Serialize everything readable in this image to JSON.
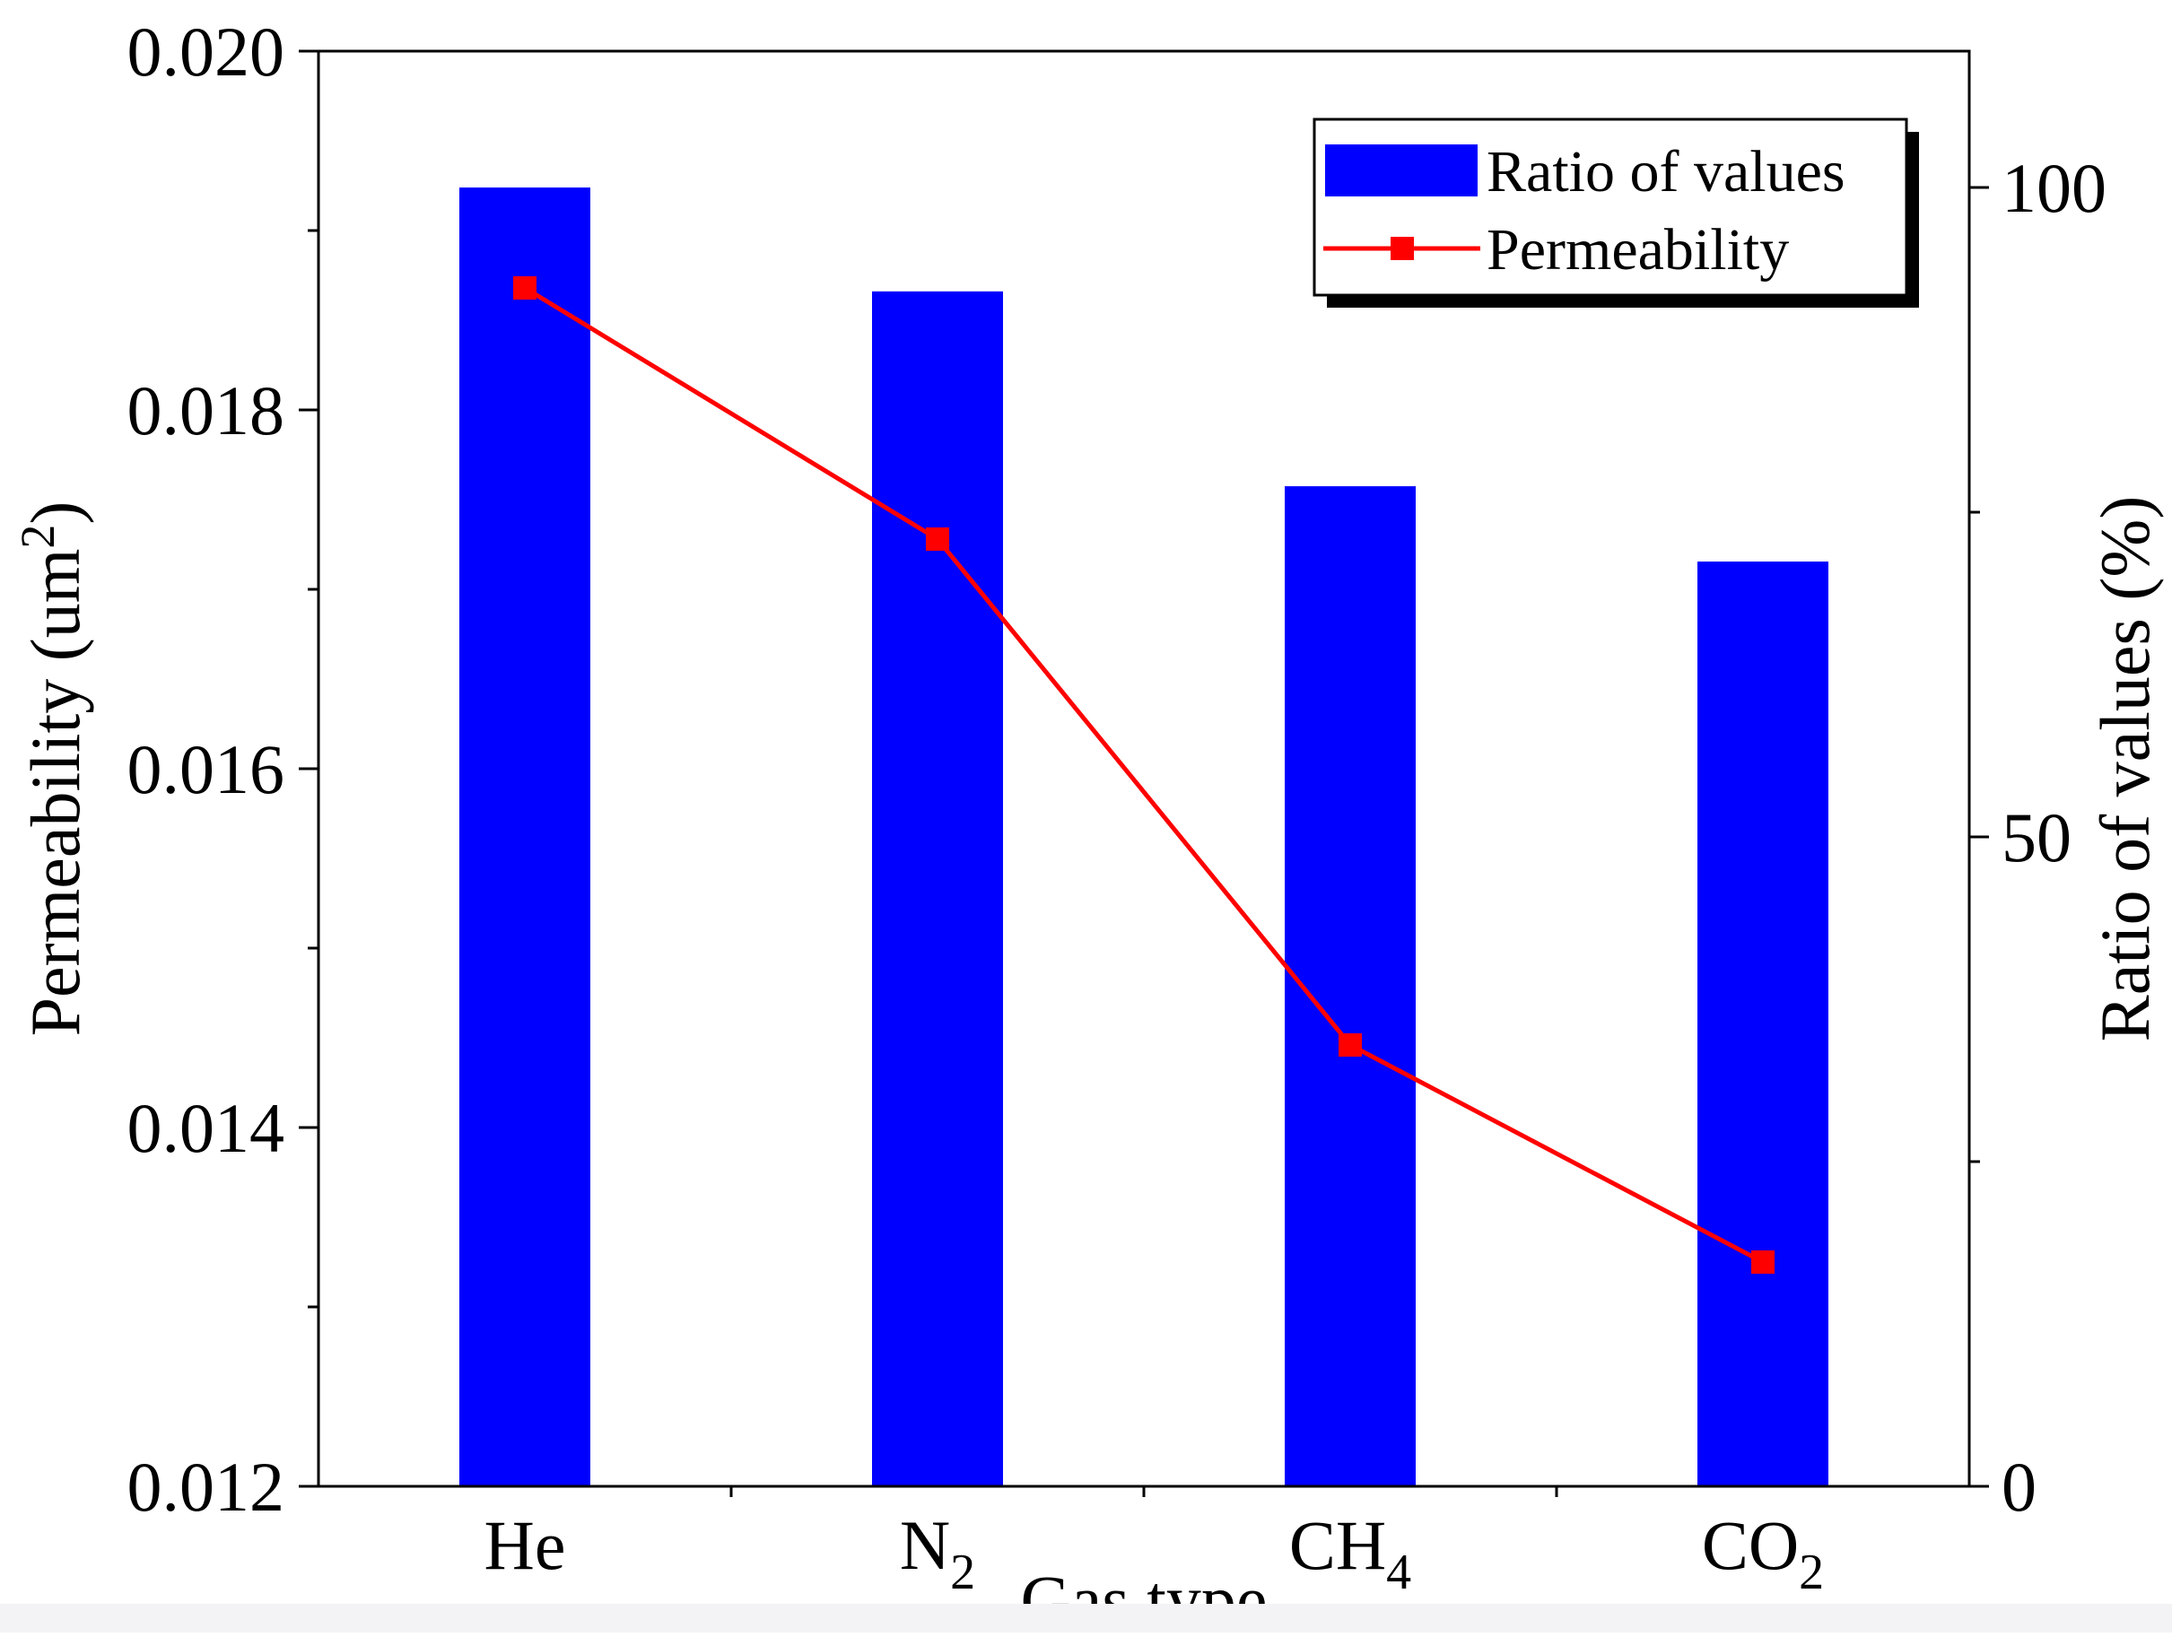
{
  "chart_data": {
    "type": "bar+line",
    "title": "",
    "xlabel": "Gas type",
    "ylabel_left": {
      "text": "Permeability (um",
      "sup": "2",
      "tail": ")"
    },
    "ylabel_right": "Ratio of values (%)",
    "categories": [
      {
        "base": "He",
        "sub": ""
      },
      {
        "base": "N",
        "sub": "2"
      },
      {
        "base": "CH",
        "sub": "4"
      },
      {
        "base": "CO",
        "sub": "2"
      }
    ],
    "left_axis": {
      "range": [
        0.012,
        0.02
      ],
      "major_ticks": [
        "0.012",
        "0.014",
        "0.016",
        "0.018",
        "0.020"
      ],
      "minor_step": 0.001
    },
    "right_axis": {
      "range": [
        0,
        110.5
      ],
      "major_ticks": [
        "0",
        "50",
        "100"
      ],
      "minor_step": 25
    },
    "series": [
      {
        "name": "Ratio of values",
        "type": "bar",
        "axis": "right",
        "color": "#0000ff",
        "values": [
          100,
          92,
          77,
          71.2
        ]
      },
      {
        "name": "Permeability",
        "type": "line",
        "axis": "left",
        "color": "#ff0000",
        "marker": "square",
        "values": [
          0.01868,
          0.01728,
          0.01446,
          0.01325
        ]
      }
    ],
    "legend": {
      "position": "top-right",
      "entries": [
        "Ratio of values",
        "Permeability"
      ]
    },
    "grid": false
  }
}
